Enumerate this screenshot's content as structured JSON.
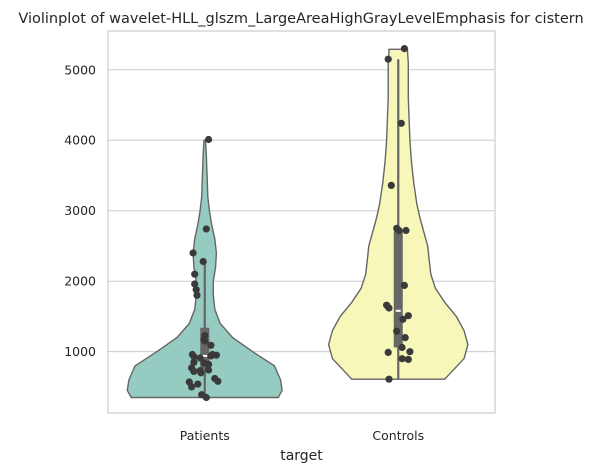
{
  "chart_data": {
    "type": "violin",
    "title": "Violinplot of wavelet-HLL_glszm_LargeAreaHighGrayLevelEmphasis for cistern",
    "xlabel": "target",
    "ylabel": "",
    "ylim": [
      130,
      5550
    ],
    "yticks": [
      1000,
      2000,
      3000,
      4000,
      5000
    ],
    "grid": "y",
    "categories": [
      "Patients",
      "Controls"
    ],
    "colors": {
      "Patients": "#95cbc0",
      "Controls": "#f7f7b9",
      "points": "#3a3a3a",
      "box": "#666666",
      "median": "#ffffff",
      "outline": "#666666"
    },
    "series": [
      {
        "category": "Patients",
        "min": 350,
        "max": 4000,
        "q1": 760,
        "median": 940,
        "q3": 1340,
        "whisker_low": 350,
        "whisker_high": 2270,
        "profile": [
          [
            350,
            0.95
          ],
          [
            450,
            1.0
          ],
          [
            600,
            0.98
          ],
          [
            800,
            0.9
          ],
          [
            1000,
            0.62
          ],
          [
            1200,
            0.36
          ],
          [
            1400,
            0.2
          ],
          [
            1600,
            0.13
          ],
          [
            1800,
            0.11
          ],
          [
            2000,
            0.11
          ],
          [
            2200,
            0.14
          ],
          [
            2400,
            0.15
          ],
          [
            2600,
            0.13
          ],
          [
            2800,
            0.09
          ],
          [
            3000,
            0.06
          ],
          [
            3200,
            0.04
          ],
          [
            3500,
            0.03
          ],
          [
            3800,
            0.02
          ],
          [
            4000,
            0.01
          ]
        ],
        "points": [
          [
            4010,
            0.05
          ],
          [
            2740,
            0.02
          ],
          [
            2400,
            -0.15
          ],
          [
            2280,
            -0.02
          ],
          [
            2100,
            -0.13
          ],
          [
            1960,
            -0.13
          ],
          [
            1880,
            -0.11
          ],
          [
            1800,
            -0.1
          ],
          [
            1230,
            0.0
          ],
          [
            1170,
            -0.01
          ],
          [
            1150,
            0.0
          ],
          [
            1090,
            0.08
          ],
          [
            960,
            -0.16
          ],
          [
            960,
            0.1
          ],
          [
            950,
            0.15
          ],
          [
            940,
            0.08
          ],
          [
            930,
            -0.14
          ],
          [
            910,
            -0.06
          ],
          [
            850,
            -0.14
          ],
          [
            840,
            -0.01
          ],
          [
            820,
            0.05
          ],
          [
            770,
            -0.17
          ],
          [
            740,
            0.05
          ],
          [
            730,
            -0.06
          ],
          [
            720,
            -0.14
          ],
          [
            700,
            -0.05
          ],
          [
            620,
            0.13
          ],
          [
            580,
            0.17
          ],
          [
            570,
            -0.2
          ],
          [
            540,
            -0.09
          ],
          [
            500,
            -0.17
          ],
          [
            390,
            -0.04
          ],
          [
            350,
            0.02
          ]
        ]
      },
      {
        "category": "Controls",
        "min": 610,
        "max": 5290,
        "q1": 1060,
        "median": 1580,
        "q3": 2710,
        "whisker_low": 610,
        "whisker_high": 5150,
        "profile": [
          [
            610,
            0.6
          ],
          [
            750,
            0.72
          ],
          [
            900,
            0.85
          ],
          [
            1100,
            0.9
          ],
          [
            1300,
            0.85
          ],
          [
            1500,
            0.75
          ],
          [
            1700,
            0.6
          ],
          [
            1900,
            0.48
          ],
          [
            2100,
            0.42
          ],
          [
            2300,
            0.4
          ],
          [
            2500,
            0.38
          ],
          [
            2700,
            0.33
          ],
          [
            2900,
            0.28
          ],
          [
            3100,
            0.24
          ],
          [
            3400,
            0.2
          ],
          [
            3700,
            0.17
          ],
          [
            4000,
            0.15
          ],
          [
            4300,
            0.14
          ],
          [
            4600,
            0.13
          ],
          [
            4900,
            0.13
          ],
          [
            5100,
            0.13
          ],
          [
            5250,
            0.12
          ],
          [
            5290,
            0.12
          ]
        ],
        "points": [
          [
            5300,
            0.08
          ],
          [
            5150,
            -0.13
          ],
          [
            4240,
            0.04
          ],
          [
            3360,
            -0.09
          ],
          [
            2750,
            -0.02
          ],
          [
            2720,
            0.01
          ],
          [
            2720,
            0.1
          ],
          [
            1940,
            0.08
          ],
          [
            1660,
            -0.15
          ],
          [
            1620,
            -0.12
          ],
          [
            1510,
            0.13
          ],
          [
            1460,
            0.06
          ],
          [
            1290,
            -0.02
          ],
          [
            1200,
            0.09
          ],
          [
            1060,
            0.05
          ],
          [
            1000,
            0.15
          ],
          [
            990,
            -0.13
          ],
          [
            900,
            0.05
          ],
          [
            890,
            0.13
          ],
          [
            610,
            -0.12
          ]
        ]
      }
    ]
  }
}
